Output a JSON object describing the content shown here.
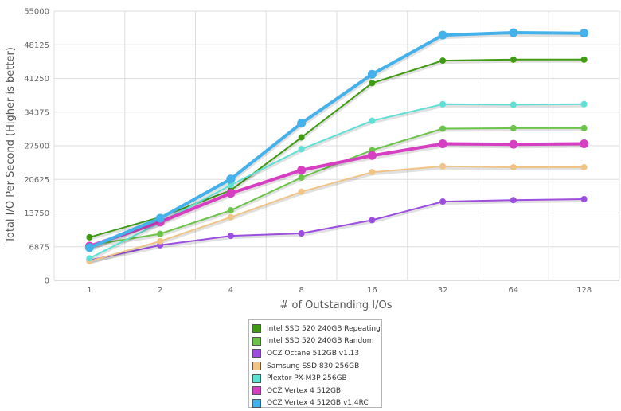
{
  "chart_data": {
    "type": "line",
    "title": "",
    "xlabel": "# of Outstanding I/Os",
    "ylabel": "Total I/O Per Second (Higher is better)",
    "categories": [
      "1",
      "2",
      "4",
      "8",
      "16",
      "32",
      "64",
      "128"
    ],
    "y_ticks": [
      "0",
      "6875",
      "13750",
      "20625",
      "27500",
      "34375",
      "41250",
      "48125",
      "55000"
    ],
    "ylim": [
      0,
      55000
    ],
    "grid": true,
    "legend_position": "bottom-center",
    "series": [
      {
        "name": "Intel SSD 520 240GB Repeating",
        "color": "#3f9a14",
        "values": [
          8800,
          12900,
          18400,
          29200,
          40300,
          44900,
          45100,
          45100
        ]
      },
      {
        "name": "Intel SSD 520 240GB Random",
        "color": "#6cc34a",
        "values": [
          7200,
          9500,
          14300,
          21000,
          26600,
          31000,
          31100,
          31100
        ]
      },
      {
        "name": "OCZ Octane 512GB v1.13",
        "color": "#9b4de0",
        "values": [
          4100,
          7200,
          9100,
          9600,
          12300,
          16100,
          16400,
          16600
        ]
      },
      {
        "name": "Samsung SSD 830 256GB",
        "color": "#f0c486",
        "values": [
          3900,
          8000,
          12900,
          18100,
          22100,
          23300,
          23100,
          23100
        ]
      },
      {
        "name": "Plextor PX-M3P 256GB",
        "color": "#5ee0d4",
        "values": [
          4500,
          11800,
          19500,
          26800,
          32600,
          36000,
          35900,
          36000
        ]
      },
      {
        "name": "OCZ Vertex 4 512GB",
        "color": "#d63fc2",
        "values": [
          7000,
          11900,
          17800,
          22500,
          25500,
          27900,
          27800,
          27900
        ]
      },
      {
        "name": "OCZ Vertex 4 512GB v1.4RC",
        "color": "#44b1ea",
        "values": [
          6700,
          12700,
          20700,
          32100,
          42100,
          50100,
          50600,
          50500
        ]
      }
    ]
  }
}
